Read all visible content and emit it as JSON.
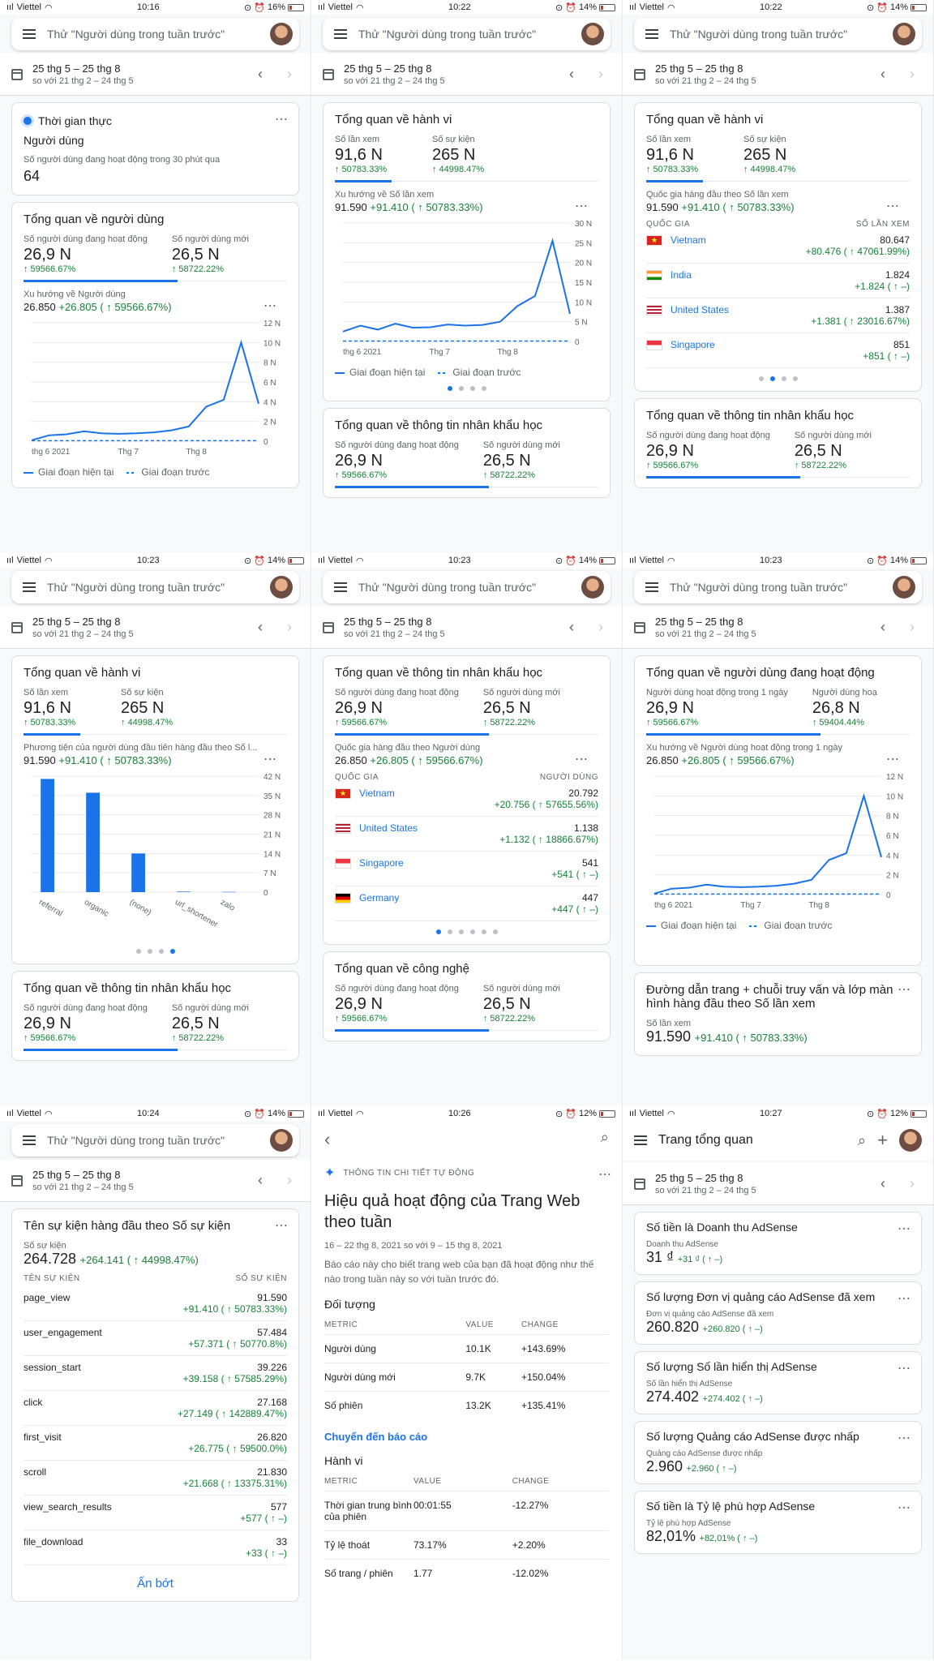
{
  "status": {
    "carrier": "Viettel",
    "times": [
      "10:16",
      "10:22",
      "10:22",
      "10:23",
      "10:23",
      "10:23",
      "10:24",
      "10:26",
      "10:27"
    ],
    "battery": [
      "16%",
      "14%",
      "14%",
      "14%",
      "14%",
      "14%",
      "14%",
      "12%",
      "12%"
    ]
  },
  "search_placeholder": "Thử \"Người dùng trong tuần trước\"",
  "date_range": "25 thg 5 – 25 thg 8",
  "compare_range": "so với 21 thg 2 – 24 thg 5",
  "common": {
    "tong_quan_hanh_vi": "Tổng quan về hành vi",
    "so_lan_xem": "Số lần xem",
    "so_su_kien": "Số sự kiện",
    "v916": "91,6 N",
    "v265": "265 N",
    "d50783": "↑ 50783.33%",
    "d44998": "↑ 44998.47%",
    "tong_quan_nhan_khau": "Tổng quan về thông tin nhân khẩu học",
    "nd_hoat_dong": "Số người dùng đang hoạt động",
    "nd_moi": "Số người dùng mới",
    "v269": "26,9 N",
    "v265b": "26,5 N",
    "d59566": "↑ 59566.67%",
    "d58722": "↑ 58722.22%",
    "g_hientai": "Giai đoạn hiện tại",
    "g_truoc": "Giai đoạn trước",
    "quoc_gia": "QUỐC GIA",
    "more": "⋯"
  },
  "p1": {
    "rt_title": "Thời gian thực",
    "rt_sub": "Người dùng",
    "rt_desc": "Số người dùng đang hoạt động trong 30 phút qua",
    "rt_value": "64",
    "user_title": "Tổng quan về người dùng",
    "trend_label": "Xu hướng về Người dùng",
    "trend_value": "26.850",
    "trend_delta": "+26.805 ( ↑ 59566.67%)"
  },
  "p2": {
    "trend_label": "Xu hướng về Số lần xem",
    "trend_value": "91.590",
    "trend_delta": "+91.410 ( ↑ 50783.33%)"
  },
  "p3": {
    "sub": "Quốc gia hàng đầu theo Số lần xem",
    "col2": "SỐ LẦN XEM",
    "rows": [
      {
        "name": "Vietnam",
        "value": "80.647",
        "delta": "+80.476 ( ↑ 47061.99%)"
      },
      {
        "name": "India",
        "value": "1.824",
        "delta": "+1.824 ( ↑ –)"
      },
      {
        "name": "United States",
        "value": "1.387",
        "delta": "+1.381 ( ↑ 23016.67%)"
      },
      {
        "name": "Singapore",
        "value": "851",
        "delta": "+851 ( ↑ –)"
      }
    ]
  },
  "p4": {
    "sub": "Phương tiện của người dùng đầu tiên hàng đầu theo Số l...",
    "value": "91.590",
    "delta": "+91.410 ( ↑ 50783.33%)"
  },
  "p5": {
    "sub": "Quốc gia hàng đầu theo Người dùng",
    "value": "26.850",
    "delta": "+26.805 ( ↑ 59566.67%)",
    "col2": "NGƯỜI DÙNG",
    "rows": [
      {
        "name": "Vietnam",
        "value": "20.792",
        "delta": "+20.756 ( ↑ 57655.56%)"
      },
      {
        "name": "United States",
        "value": "1.138",
        "delta": "+1.132 ( ↑ 18866.67%)"
      },
      {
        "name": "Singapore",
        "value": "541",
        "delta": "+541 ( ↑ –)"
      },
      {
        "name": "Germany",
        "value": "447",
        "delta": "+447 ( ↑ –)"
      }
    ],
    "tech_title": "Tổng quan về công nghệ"
  },
  "p6": {
    "title": "Tổng quan về người dùng đang hoạt động",
    "m1": "Người dùng hoạt động trong 1 ngày",
    "m1v": "26,9 N",
    "m1d": "↑ 59566.67%",
    "m2": "Người dùng hoạ",
    "m2v": "26,8 N",
    "m2d": "↑ 59404.44%",
    "trend_label": "Xu hướng về Người dùng hoạt động trong 1 ngày",
    "trend_value": "26.850",
    "trend_delta": "+26.805 ( ↑ 59566.67%)",
    "page_title": "Đường dẫn trang + chuỗi truy vấn và lớp màn hình hàng đầu theo Số lần xem",
    "page_sub": "Số lần xem",
    "page_value": "91.590",
    "page_delta": "+91.410 ( ↑ 50783.33%)"
  },
  "p7": {
    "title": "Tên sự kiện hàng đầu theo Số sự kiện",
    "sub": "Số sự kiện",
    "value": "264.728",
    "delta": "+264.141 ( ↑ 44998.47%)",
    "col1": "TÊN SỰ KIỆN",
    "col2": "SỐ SỰ KIỆN",
    "rows": [
      {
        "name": "page_view",
        "value": "91.590",
        "delta": "+91.410 ( ↑ 50783.33%)"
      },
      {
        "name": "user_engagement",
        "value": "57.484",
        "delta": "+57.371 ( ↑ 50770.8%)"
      },
      {
        "name": "session_start",
        "value": "39.226",
        "delta": "+39.158 ( ↑ 57585.29%)"
      },
      {
        "name": "click",
        "value": "27.168",
        "delta": "+27.149 ( ↑ 142889.47%)"
      },
      {
        "name": "first_visit",
        "value": "26.820",
        "delta": "+26.775 ( ↑ 59500.0%)"
      },
      {
        "name": "scroll",
        "value": "21.830",
        "delta": "+21.668 ( ↑ 13375.31%)"
      },
      {
        "name": "view_search_results",
        "value": "577",
        "delta": "+577 ( ↑ –)"
      },
      {
        "name": "file_download",
        "value": "33",
        "delta": "+33 ( ↑ –)"
      }
    ],
    "less": "Ẩn bớt"
  },
  "p8": {
    "tag": "THÔNG TIN CHI TIẾT TỰ ĐỘNG",
    "title": "Hiệu quả hoạt động của Trang Web theo tuần",
    "dates": "16 – 22 thg 8, 2021 so với 9 – 15 thg 8, 2021",
    "desc": "Báo cáo này cho biết trang web của bạn đã hoạt động như thế nào trong tuần này so với tuần trước đó.",
    "sec1": "Đối tượng",
    "h_metric": "METRIC",
    "h_value": "VALUE",
    "h_change": "CHANGE",
    "t1": [
      {
        "m": "Người dùng",
        "v": "10.1K",
        "c": "+143.69%"
      },
      {
        "m": "Người dùng mới",
        "v": "9.7K",
        "c": "+150.04%"
      },
      {
        "m": "Số phiên",
        "v": "13.2K",
        "c": "+135.41%"
      }
    ],
    "link": "Chuyển đến báo cáo",
    "sec2": "Hành vi",
    "t2": [
      {
        "m": "Thời gian trung bình của phiên",
        "v": "00:01:55",
        "c": "-12.27%"
      },
      {
        "m": "Tỷ lệ thoát",
        "v": "73.17%",
        "c": "+2.20%"
      },
      {
        "m": "Số trang / phiên",
        "v": "1.77",
        "c": "-12.02%"
      }
    ]
  },
  "p9": {
    "title": "Trang tổng quan",
    "cards": [
      {
        "t": "Số tiền là Doanh thu AdSense",
        "s": "Doanh thu AdSense",
        "v": "31 ₫",
        "d": "+31 ₫ ( ↑ –)"
      },
      {
        "t": "Số lượng Đơn vị quảng cáo AdSense đã xem",
        "s": "Đơn vị quảng cáo AdSense đã xem",
        "v": "260.820",
        "d": "+260.820 ( ↑ –)"
      },
      {
        "t": "Số lượng Số lần hiển thị AdSense",
        "s": "Số lần hiển thị AdSense",
        "v": "274.402",
        "d": "+274.402 ( ↑ –)"
      },
      {
        "t": "Số lượng Quảng cáo AdSense được nhấp",
        "s": "Quảng cáo AdSense được nhấp",
        "v": "2.960",
        "d": "+2.960 ( ↑ –)"
      },
      {
        "t": "Số tiền là Tỷ lệ phù hợp AdSense",
        "s": "Tỷ lệ phù hợp AdSense",
        "v": "82,01%",
        "d": "+82,01% ( ↑ –)"
      }
    ]
  },
  "chart_data": [
    {
      "type": "line",
      "id": "users",
      "xticks": [
        "thg 6 2021",
        "Thg 7",
        "Thg 8"
      ],
      "yticks": [
        "0",
        "2 N",
        "4 N",
        "6 N",
        "8 N",
        "10 N",
        "12 N"
      ],
      "ylim": [
        0,
        12000
      ],
      "series": [
        {
          "values": [
            100,
            600,
            700,
            1000,
            800,
            750,
            800,
            900,
            1100,
            1500,
            3500,
            4200,
            10000,
            3800
          ]
        },
        {
          "values": [
            50,
            50,
            50,
            50,
            50,
            50,
            50,
            50,
            50,
            50,
            50,
            50,
            50,
            50
          ]
        }
      ]
    },
    {
      "type": "line",
      "id": "views",
      "xticks": [
        "thg 6 2021",
        "Thg 7",
        "Thg 8"
      ],
      "yticks": [
        "0",
        "5 N",
        "10 N",
        "15 N",
        "20 N",
        "25 N",
        "30 N"
      ],
      "ylim": [
        0,
        30000
      ],
      "series": [
        {
          "values": [
            2500,
            4000,
            3000,
            4500,
            3500,
            3600,
            4300,
            4000,
            4200,
            5000,
            9000,
            11500,
            25500,
            7000
          ]
        },
        {
          "values": [
            100,
            100,
            100,
            100,
            100,
            100,
            100,
            100,
            100,
            100,
            100,
            100,
            100,
            100
          ]
        }
      ]
    },
    {
      "type": "bar",
      "id": "medium",
      "categories": [
        "referral",
        "organic",
        "(none)",
        "url_shortener",
        "zalo"
      ],
      "values": [
        41000,
        36000,
        14000,
        200,
        100
      ],
      "yticks": [
        "0",
        "7 N",
        "14 N",
        "21 N",
        "28 N",
        "35 N",
        "42 N"
      ],
      "ylim": [
        0,
        42000
      ]
    },
    {
      "type": "line",
      "id": "active",
      "xticks": [
        "thg 6 2021",
        "Thg 7",
        "Thg 8"
      ],
      "yticks": [
        "0",
        "2 N",
        "4 N",
        "6 N",
        "8 N",
        "10 N",
        "12 N"
      ],
      "ylim": [
        0,
        12000
      ],
      "series": [
        {
          "values": [
            100,
            600,
            700,
            1000,
            800,
            750,
            800,
            900,
            1100,
            1500,
            3500,
            4200,
            10000,
            3800
          ]
        },
        {
          "values": [
            50,
            50,
            50,
            50,
            50,
            50,
            50,
            50,
            50,
            50,
            50,
            50,
            50,
            50
          ]
        }
      ]
    }
  ],
  "colors": {
    "accent": "#1a73e8",
    "green": "#188038"
  }
}
